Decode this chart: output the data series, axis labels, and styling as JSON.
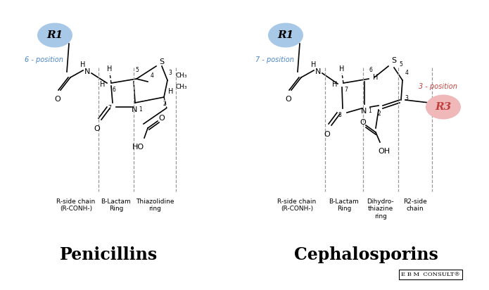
{
  "bg_color": "#ffffff",
  "blue_circle_color": "#a8c8e8",
  "red_circle_color": "#f0b8b8",
  "blue_text_color": "#4a86c8",
  "red_text_color": "#c04040",
  "dashed_line_color": "#999999",
  "pen_title": "Penicillins",
  "ceph_title": "Cephalosporins",
  "pen_labels": [
    "R-side chain\n(R-CONH-)",
    "B-Lactam\nRing",
    "Thiazolidine\nring"
  ],
  "ceph_labels": [
    "R-side chain\n(R-CONH-)",
    "B-Lactam\nRing",
    "Dihydro-\nthiazine\nring",
    "R2-side\nchain"
  ]
}
